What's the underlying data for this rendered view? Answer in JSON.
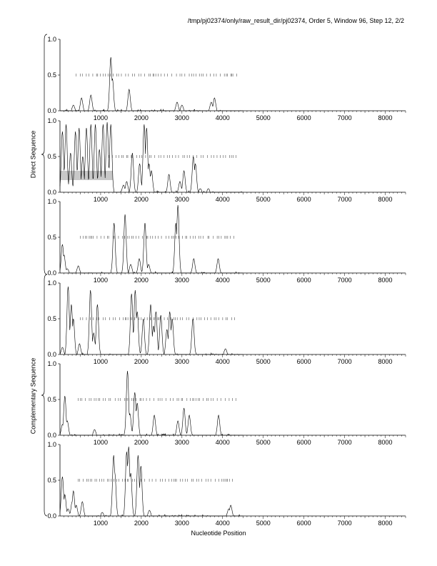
{
  "figure": {
    "header": "/tmp/pj02374/only/raw_result_dir/pj02374, Order 5, Window 96, Step 12, 2/2",
    "xlabel": "Nucleotide Position",
    "group_labels": [
      "Direct Sequence",
      "Complementary Sequence"
    ]
  },
  "chart_data": [
    {
      "type": "line",
      "group": "Direct Sequence",
      "frame": 1,
      "xlim": [
        0,
        8500
      ],
      "ylim": [
        0,
        1
      ],
      "xticks": [
        1000,
        2000,
        3000,
        4000,
        5000,
        6000,
        7000,
        8000
      ],
      "yticks": [
        0.0,
        0.5,
        1.0
      ],
      "yticklabels": [
        "0.0",
        "0.5",
        "1.0"
      ],
      "codon_marks_y": 0.5,
      "codon_marks_range": [
        400,
        4350
      ],
      "peaks": [
        [
          330,
          0.08
        ],
        [
          530,
          0.18
        ],
        [
          760,
          0.22
        ],
        [
          1250,
          0.75
        ],
        [
          1290,
          0.45
        ],
        [
          1700,
          0.3
        ],
        [
          2880,
          0.12
        ],
        [
          3000,
          0.08
        ],
        [
          3720,
          0.12
        ],
        [
          3800,
          0.18
        ]
      ],
      "shaded_region": null
    },
    {
      "type": "line",
      "group": "Direct Sequence",
      "frame": 2,
      "xlim": [
        0,
        8500
      ],
      "ylim": [
        0,
        1
      ],
      "xticks": [
        1000,
        2000,
        3000,
        4000,
        5000,
        6000,
        7000,
        8000
      ],
      "yticks": [
        0.0,
        0.5,
        1.0
      ],
      "yticklabels": [
        "0.0",
        "0.5",
        "1.0"
      ],
      "codon_marks_y": 0.5,
      "codon_marks_range": [
        1200,
        4350
      ],
      "peaks": [
        [
          60,
          0.85
        ],
        [
          150,
          0.95
        ],
        [
          260,
          0.55
        ],
        [
          380,
          0.85
        ],
        [
          470,
          0.9
        ],
        [
          560,
          0.5
        ],
        [
          650,
          0.9
        ],
        [
          760,
          0.95
        ],
        [
          870,
          0.95
        ],
        [
          970,
          0.6
        ],
        [
          1060,
          0.95
        ],
        [
          1160,
          0.98
        ],
        [
          1250,
          0.95
        ],
        [
          1560,
          0.1
        ],
        [
          1640,
          0.15
        ],
        [
          1780,
          0.55
        ],
        [
          1960,
          0.4
        ],
        [
          2070,
          0.95
        ],
        [
          2130,
          0.9
        ],
        [
          2190,
          0.4
        ],
        [
          2250,
          0.3
        ],
        [
          2680,
          0.25
        ],
        [
          2950,
          0.15
        ],
        [
          3050,
          0.3
        ],
        [
          3280,
          0.5
        ],
        [
          3330,
          0.4
        ],
        [
          3450,
          0.05
        ],
        [
          3650,
          0.05
        ]
      ],
      "shaded_region": {
        "x": [
          0,
          1300
        ],
        "y": [
          0.17,
          0.3
        ],
        "color": "#c8c8c8"
      }
    },
    {
      "type": "line",
      "group": "Direct Sequence",
      "frame": 3,
      "xlim": [
        0,
        8500
      ],
      "ylim": [
        0,
        1
      ],
      "xticks": [
        1000,
        2000,
        3000,
        4000,
        5000,
        6000,
        7000,
        8000
      ],
      "yticks": [
        0.0,
        0.5,
        1.0
      ],
      "yticklabels": [
        "0.0",
        "0.5",
        "1.0"
      ],
      "codon_marks_y": 0.5,
      "codon_marks_range": [
        500,
        4300
      ],
      "peaks": [
        [
          60,
          0.4
        ],
        [
          100,
          0.25
        ],
        [
          180,
          0.06
        ],
        [
          450,
          0.1
        ],
        [
          1330,
          0.7
        ],
        [
          1600,
          0.82
        ],
        [
          1740,
          0.12
        ],
        [
          1950,
          0.2
        ],
        [
          2090,
          0.7
        ],
        [
          2180,
          0.12
        ],
        [
          2850,
          0.7
        ],
        [
          2900,
          0.95
        ],
        [
          3290,
          0.2
        ],
        [
          3890,
          0.2
        ]
      ],
      "shaded_region": null
    },
    {
      "type": "line",
      "group": "Complementary Sequence",
      "frame": 1,
      "xlim": [
        0,
        8500
      ],
      "ylim": [
        0,
        1
      ],
      "xticks": [
        1000,
        2000,
        3000,
        4000,
        5000,
        6000,
        7000,
        8000
      ],
      "yticks": [
        0.0,
        0.5,
        1.0
      ],
      "yticklabels": [
        "0.0",
        "0.5",
        "1.0"
      ],
      "codon_marks_y": 0.5,
      "codon_marks_range": [
        500,
        4300
      ],
      "peaks": [
        [
          60,
          0.1
        ],
        [
          200,
          0.95
        ],
        [
          280,
          0.7
        ],
        [
          330,
          0.5
        ],
        [
          480,
          0.15
        ],
        [
          750,
          0.9
        ],
        [
          830,
          0.3
        ],
        [
          920,
          0.7
        ],
        [
          1760,
          0.85
        ],
        [
          1850,
          0.9
        ],
        [
          1900,
          0.6
        ],
        [
          2050,
          0.5
        ],
        [
          2230,
          0.7
        ],
        [
          2300,
          0.4
        ],
        [
          2360,
          0.6
        ],
        [
          2480,
          0.55
        ],
        [
          2630,
          0.35
        ],
        [
          2700,
          0.6
        ],
        [
          2760,
          0.5
        ],
        [
          3270,
          0.5
        ],
        [
          4070,
          0.08
        ]
      ],
      "shaded_region": null
    },
    {
      "type": "line",
      "group": "Complementary Sequence",
      "frame": 2,
      "xlim": [
        0,
        8500
      ],
      "ylim": [
        0,
        1
      ],
      "xticks": [
        1000,
        2000,
        3000,
        4000,
        5000,
        6000,
        7000,
        8000
      ],
      "yticks": [
        0.0,
        0.5,
        1.0
      ],
      "yticklabels": [
        "0.0",
        "0.5",
        "1.0"
      ],
      "codon_marks_y": 0.5,
      "codon_marks_range": [
        450,
        4350
      ],
      "peaks": [
        [
          60,
          0.15
        ],
        [
          120,
          0.55
        ],
        [
          180,
          0.2
        ],
        [
          850,
          0.08
        ],
        [
          1660,
          0.9
        ],
        [
          1720,
          0.3
        ],
        [
          1840,
          0.6
        ],
        [
          1900,
          0.45
        ],
        [
          2320,
          0.28
        ],
        [
          2900,
          0.2
        ],
        [
          3050,
          0.38
        ],
        [
          3180,
          0.28
        ],
        [
          3900,
          0.28
        ]
      ],
      "shaded_region": null
    },
    {
      "type": "line",
      "group": "Complementary Sequence",
      "frame": 3,
      "xlim": [
        0,
        8500
      ],
      "ylim": [
        0,
        1
      ],
      "xticks": [
        1000,
        2000,
        3000,
        4000,
        5000,
        6000,
        7000,
        8000
      ],
      "yticks": [
        0.0,
        0.5,
        1.0
      ],
      "yticklabels": [
        "0.0",
        "0.5",
        "1.0"
      ],
      "codon_marks_y": 0.5,
      "codon_marks_range": [
        450,
        4300
      ],
      "peaks": [
        [
          60,
          0.55
        ],
        [
          120,
          0.3
        ],
        [
          200,
          0.1
        ],
        [
          300,
          0.2
        ],
        [
          330,
          0.35
        ],
        [
          400,
          0.15
        ],
        [
          550,
          0.2
        ],
        [
          1040,
          0.05
        ],
        [
          1320,
          0.85
        ],
        [
          1350,
          0.6
        ],
        [
          1640,
          0.9
        ],
        [
          1690,
          0.97
        ],
        [
          1740,
          0.6
        ],
        [
          1920,
          0.85
        ],
        [
          1990,
          0.7
        ],
        [
          2200,
          0.08
        ],
        [
          4150,
          0.1
        ],
        [
          4200,
          0.15
        ]
      ],
      "shaded_region": null
    }
  ]
}
